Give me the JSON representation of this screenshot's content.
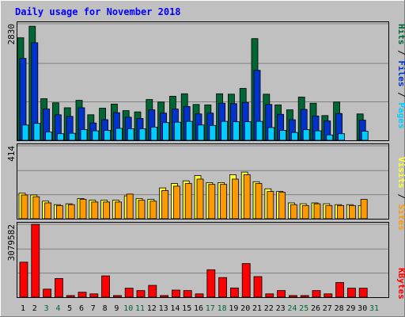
{
  "title": "Daily usage for November 2018",
  "colors": {
    "background": "#c0c0c0",
    "title": "#0000ff",
    "hits": "#006633",
    "files": "#0033cc",
    "pages": "#00ccff",
    "visits": "#ffff33",
    "sites": "#ff9900",
    "kbytes": "#ff0000",
    "weekend_day": "#006633",
    "weekday": "#000000"
  },
  "axis": {
    "top_max_label": "2830",
    "mid_max_label": "414",
    "bottom_max_label": "3079582"
  },
  "legend": {
    "pages": "Pages",
    "files": "Files",
    "hits": "Hits",
    "sep1": " / ",
    "sep2": " / ",
    "visits": "Visits",
    "sites": "Sites",
    "sep3": " / ",
    "kbytes": "KBytes"
  },
  "chart_data": {
    "type": "bar",
    "title": "Daily usage for November 2018",
    "categories": [
      "1",
      "2",
      "3",
      "4",
      "5",
      "6",
      "7",
      "8",
      "9",
      "10",
      "11",
      "12",
      "13",
      "14",
      "15",
      "16",
      "17",
      "18",
      "19",
      "20",
      "21",
      "22",
      "23",
      "24",
      "25",
      "26",
      "27",
      "28",
      "29",
      "30",
      "31"
    ],
    "weekend_days": [
      "3",
      "4",
      "10",
      "11",
      "17",
      "18",
      "24",
      "25",
      "31"
    ],
    "panels": [
      {
        "name": "hits-files-pages",
        "ymax": 2830,
        "series": [
          {
            "name": "Hits",
            "values": [
              2490,
              2770,
              1010,
              910,
              790,
              970,
              620,
              780,
              880,
              720,
              690,
              990,
              930,
              1070,
              1130,
              870,
              860,
              1130,
              1120,
              1260,
              2470,
              1120,
              860,
              740,
              1050,
              900,
              600,
              930,
              0,
              640,
              0
            ]
          },
          {
            "name": "Files",
            "values": [
              1990,
              2370,
              760,
              620,
              580,
              790,
              420,
              500,
              670,
              560,
              530,
              740,
              660,
              760,
              820,
              640,
              660,
              900,
              890,
              920,
              1700,
              870,
              630,
              500,
              750,
              590,
              470,
              650,
              0,
              490,
              0
            ]
          },
          {
            "name": "Pages",
            "values": [
              370,
              410,
              200,
              160,
              170,
              260,
              230,
              240,
              290,
              280,
              280,
              320,
              430,
              440,
              460,
              370,
              360,
              460,
              450,
              450,
              460,
              310,
              240,
              190,
              260,
              230,
              130,
              160,
              0,
              220,
              0
            ]
          }
        ]
      },
      {
        "name": "visits-sites",
        "ymax": 414,
        "series": [
          {
            "name": "Visits",
            "values": [
              145,
              135,
              100,
              80,
              85,
              115,
              105,
              105,
              105,
              130,
              115,
              110,
              175,
              200,
              215,
              245,
              205,
              205,
              250,
              265,
              210,
              170,
              155,
              90,
              85,
              90,
              85,
              80,
              80,
              75,
              0
            ]
          },
          {
            "name": "Sites",
            "values": [
              135,
              125,
              90,
              75,
              80,
              110,
              95,
              95,
              95,
              140,
              105,
              100,
              160,
              185,
              200,
              225,
              195,
              195,
              225,
              250,
              200,
              155,
              150,
              80,
              75,
              85,
              75,
              75,
              75,
              110,
              0
            ]
          }
        ]
      },
      {
        "name": "kbytes",
        "ymax": 3079582,
        "series": [
          {
            "name": "KBytes",
            "values": [
              1480000,
              3079582,
              340000,
              790000,
              70000,
              210000,
              140000,
              900000,
              70000,
              380000,
              280000,
              500000,
              70000,
              300000,
              280000,
              140000,
              1160000,
              830000,
              390000,
              1420000,
              870000,
              140000,
              280000,
              70000,
              70000,
              280000,
              140000,
              620000,
              380000,
              380000,
              0
            ]
          }
        ]
      }
    ]
  }
}
